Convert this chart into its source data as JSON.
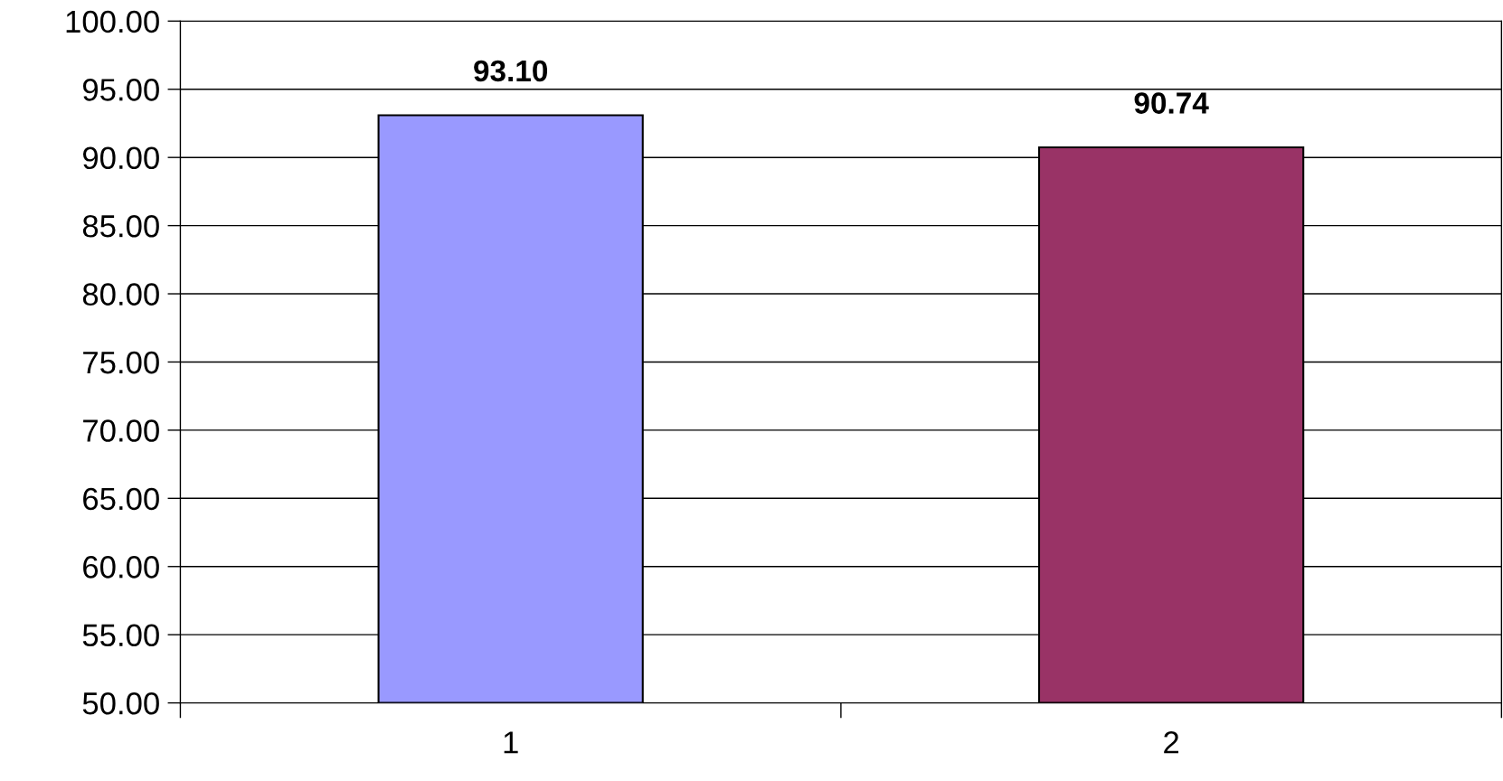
{
  "chart_data": {
    "type": "bar",
    "categories": [
      "1",
      "2"
    ],
    "values": [
      93.1,
      90.74
    ],
    "colors": [
      "#9999ff",
      "#993366"
    ],
    "value_labels": [
      "93.10",
      "90.74"
    ],
    "ylim": [
      50,
      100
    ],
    "yticks": [
      {
        "value": 50,
        "label": "50.00"
      },
      {
        "value": 55,
        "label": "55.00"
      },
      {
        "value": 60,
        "label": "60.00"
      },
      {
        "value": 65,
        "label": "65.00"
      },
      {
        "value": 70,
        "label": "70.00"
      },
      {
        "value": 75,
        "label": "75.00"
      },
      {
        "value": 80,
        "label": "80.00"
      },
      {
        "value": 85,
        "label": "85.00"
      },
      {
        "value": 90,
        "label": "90.00"
      },
      {
        "value": 95,
        "label": "95.00"
      },
      {
        "value": 100,
        "label": "100.00"
      }
    ],
    "grid": "y",
    "legend": false
  }
}
